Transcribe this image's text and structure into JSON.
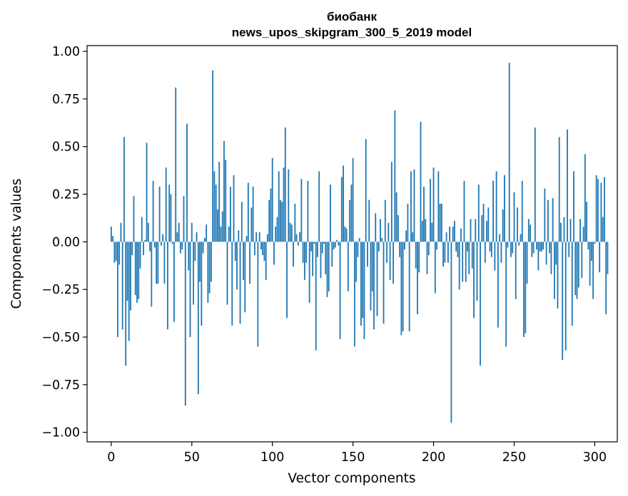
{
  "chart_data": {
    "type": "bar",
    "title_line1": "биобанк",
    "title_line2": "news_upos_skipgram_300_5_2019 model",
    "xlabel": "Vector components",
    "ylabel": "Components values",
    "xlim": [
      -15,
      314
    ],
    "ylim": [
      -1.05,
      1.03
    ],
    "xticks": [
      0,
      50,
      100,
      150,
      200,
      250,
      300
    ],
    "xtick_labels": [
      "0",
      "50",
      "100",
      "150",
      "200",
      "250",
      "300"
    ],
    "yticks": [
      1.0,
      0.75,
      0.5,
      0.25,
      0.0,
      -0.25,
      -0.5,
      -0.75,
      -1.0
    ],
    "ytick_labels": [
      "1.00",
      "0.75",
      "0.50",
      "0.25",
      "0.00",
      "−0.25",
      "−0.50",
      "−0.75",
      "−1.00"
    ],
    "bar_color": "#1f77b4",
    "values": [
      0.08,
      0.03,
      -0.11,
      -0.1,
      -0.5,
      -0.12,
      0.1,
      -0.46,
      0.55,
      -0.65,
      -0.31,
      -0.52,
      -0.36,
      -0.07,
      0.24,
      -0.28,
      -0.32,
      -0.3,
      -0.14,
      0.13,
      -0.07,
      0.01,
      0.52,
      0.1,
      -0.05,
      -0.34,
      0.32,
      -0.03,
      -0.22,
      -0.22,
      0.29,
      -0.02,
      0.04,
      -0.22,
      0.39,
      -0.46,
      0.3,
      0.25,
      -0.01,
      -0.42,
      0.81,
      0.05,
      0.1,
      -0.06,
      -0.04,
      0.24,
      -0.86,
      0.62,
      -0.15,
      -0.5,
      0.1,
      -0.33,
      -0.1,
      0.05,
      -0.8,
      -0.21,
      -0.44,
      -0.06,
      0.02,
      0.09,
      -0.32,
      -0.27,
      -0.21,
      0.9,
      0.37,
      0.3,
      0.17,
      0.42,
      0.08,
      0.16,
      0.53,
      0.43,
      -0.33,
      0.08,
      0.29,
      -0.44,
      0.35,
      -0.1,
      -0.25,
      0.06,
      -0.43,
      0.21,
      -0.2,
      -0.37,
      0.03,
      0.31,
      -0.22,
      0.18,
      0.29,
      -0.07,
      0.05,
      -0.55,
      0.05,
      -0.04,
      -0.07,
      -0.1,
      -0.2,
      0.04,
      0.22,
      0.28,
      0.44,
      -0.12,
      0.08,
      0.13,
      0.37,
      0.22,
      0.21,
      0.39,
      0.6,
      -0.4,
      0.38,
      0.1,
      0.09,
      -0.13,
      0.2,
      0.04,
      -0.02,
      0.05,
      0.33,
      -0.11,
      -0.2,
      -0.11,
      0.32,
      -0.32,
      -0.05,
      -0.18,
      -0.01,
      -0.57,
      -0.08,
      0.37,
      -0.19,
      -0.06,
      -0.01,
      -0.17,
      -0.29,
      -0.26,
      0.3,
      -0.13,
      -0.04,
      -0.03,
      0.01,
      -0.02,
      -0.51,
      0.34,
      0.4,
      0.08,
      0.07,
      -0.26,
      0.22,
      0.3,
      0.44,
      -0.55,
      -0.21,
      -0.08,
      0.02,
      -0.44,
      -0.4,
      -0.51,
      0.54,
      -0.13,
      0.22,
      -0.36,
      -0.26,
      -0.46,
      0.15,
      -0.39,
      -0.05,
      0.12,
      0.02,
      -0.43,
      0.22,
      -0.11,
      0.1,
      -0.2,
      0.42,
      -0.22,
      0.69,
      0.26,
      0.14,
      -0.08,
      -0.49,
      -0.47,
      -0.04,
      0.06,
      0.2,
      -0.47,
      0.37,
      0.05,
      0.38,
      -0.14,
      -0.38,
      -0.16,
      0.63,
      0.11,
      0.29,
      0.12,
      -0.17,
      -0.07,
      0.33,
      0.1,
      0.39,
      -0.27,
      -0.04,
      0.37,
      0.2,
      0.2,
      -0.13,
      -0.11,
      0.05,
      -0.11,
      0.08,
      -0.95,
      0.08,
      0.11,
      -0.05,
      -0.08,
      -0.25,
      0.07,
      -0.21,
      0.32,
      -0.21,
      -0.05,
      -0.17,
      0.12,
      -0.14,
      -0.4,
      0.12,
      -0.31,
      0.3,
      -0.65,
      0.14,
      0.2,
      -0.11,
      0.11,
      0.18,
      -0.05,
      -0.08,
      0.32,
      -0.15,
      0.37,
      -0.45,
      0.04,
      -0.11,
      0.17,
      0.35,
      -0.55,
      -0.03,
      0.94,
      -0.08,
      -0.06,
      0.26,
      -0.3,
      0.18,
      -0.02,
      0.04,
      0.32,
      -0.5,
      -0.48,
      -0.22,
      0.12,
      0.09,
      -0.08,
      -0.06,
      0.6,
      -0.04,
      -0.15,
      -0.05,
      -0.05,
      -0.04,
      0.28,
      -0.12,
      0.22,
      -0.06,
      -0.17,
      0.23,
      -0.3,
      -0.12,
      -0.35,
      0.55,
      0.1,
      -0.62,
      0.13,
      -0.57,
      0.59,
      -0.08,
      0.12,
      -0.44,
      0.37,
      -0.28,
      -0.3,
      -0.24,
      0.12,
      -0.19,
      0.08,
      0.46,
      0.21,
      -0.04,
      -0.23,
      -0.1,
      -0.3,
      -0.01,
      0.35,
      0.33,
      -0.16,
      0.31,
      0.13,
      0.34,
      -0.38,
      -0.17
    ]
  }
}
